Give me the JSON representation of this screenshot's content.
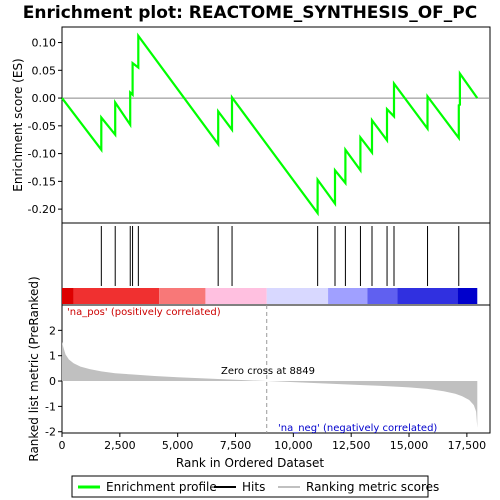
{
  "chart_data": {
    "type": "line",
    "title": "Enrichment plot: REACTOME_SYNTHESIS_OF_PC",
    "top_panel": {
      "ylabel": "Enrichment score (ES)",
      "ylim": [
        -0.225,
        0.128
      ],
      "yticks": [
        0.1,
        0.05,
        0.0,
        -0.05,
        -0.1,
        -0.15,
        -0.2
      ],
      "ytick_labels": [
        "0.10",
        "0.05",
        "0.00",
        "-0.05",
        "-0.10",
        "-0.15",
        "-0.20"
      ],
      "series": [
        {
          "name": "Enrichment profile",
          "color": "#00ff00",
          "x": [
            0,
            1700,
            1700,
            2300,
            2300,
            2950,
            2950,
            3050,
            3050,
            3300,
            3300,
            6750,
            6750,
            7350,
            7350,
            11050,
            11050,
            11800,
            11800,
            12250,
            12250,
            12900,
            12900,
            13400,
            13400,
            14050,
            14050,
            14350,
            14350,
            15800,
            15800,
            17150,
            17150,
            17200,
            17200,
            17950
          ],
          "y": [
            0.0,
            -0.093,
            -0.035,
            -0.066,
            -0.008,
            -0.048,
            0.01,
            0.006,
            0.063,
            0.055,
            0.112,
            -0.083,
            -0.024,
            -0.057,
            0.001,
            -0.207,
            -0.147,
            -0.19,
            -0.13,
            -0.153,
            -0.093,
            -0.13,
            -0.071,
            -0.098,
            -0.04,
            -0.076,
            -0.02,
            -0.033,
            0.026,
            -0.055,
            0.003,
            -0.072,
            -0.013,
            -0.012,
            0.044,
            0.0
          ]
        }
      ]
    },
    "hits_panel": {
      "series": [
        {
          "name": "Hits",
          "color": "#000000",
          "x": [
            1700,
            2300,
            2950,
            3050,
            3300,
            6750,
            7350,
            11050,
            11800,
            12250,
            12900,
            13400,
            14050,
            14350,
            15800,
            17150
          ]
        }
      ]
    },
    "bottom_panel": {
      "ylabel": "Ranked list metric (PreRanked)",
      "xlabel": "Rank in Ordered Dataset",
      "ylim": [
        -2.05,
        3.0
      ],
      "yticks": [
        2,
        1,
        0,
        -1,
        -2
      ],
      "ytick_labels": [
        "2",
        "1",
        "0",
        "-1",
        "-2"
      ],
      "xlim": [
        0,
        18500
      ],
      "xticks": [
        0,
        2500,
        5000,
        7500,
        10000,
        12500,
        15000,
        17500
      ],
      "xtick_labels": [
        "0",
        "2,500",
        "5,000",
        "7,500",
        "10,000",
        "12,500",
        "15,000",
        "17,500"
      ],
      "series": [
        {
          "name": "Ranking metric scores",
          "color": "#c0c0c0",
          "x": [
            0,
            50,
            150,
            300,
            500,
            800,
            1200,
            1700,
            2300,
            3000,
            4000,
            5000,
            6000,
            7000,
            8000,
            8849,
            10000,
            11000,
            12000,
            13000,
            14000,
            15000,
            15800,
            16500,
            17000,
            17300,
            17600,
            17800,
            17900,
            17950
          ],
          "y": [
            1.55,
            1.35,
            1.05,
            0.85,
            0.7,
            0.57,
            0.47,
            0.38,
            0.31,
            0.26,
            0.2,
            0.15,
            0.11,
            0.07,
            0.03,
            0.0,
            -0.04,
            -0.08,
            -0.12,
            -0.16,
            -0.2,
            -0.25,
            -0.31,
            -0.4,
            -0.5,
            -0.6,
            -0.75,
            -0.95,
            -1.2,
            -1.85
          ]
        }
      ],
      "zero_cross_label": "Zero cross at 8849",
      "zero_cross_x": 8849,
      "pos_label": "'na_pos' (positively correlated)",
      "neg_label": "'na_neg' (negatively correlated)",
      "pos_color": "#cc0000",
      "neg_color": "#0000cc"
    },
    "gradient_bar": {
      "colors": [
        "#dd0000",
        "#f03030",
        "#f87878",
        "#ffc0e0",
        "#d8d8ff",
        "#a0a0ff",
        "#6060f0",
        "#3030e0",
        "#0000cc"
      ],
      "x": [
        0,
        500,
        4200,
        6200,
        8849,
        11500,
        13200,
        14500,
        17100,
        17950
      ]
    },
    "legend": {
      "items": [
        {
          "label": "Enrichment profile",
          "color": "#00ff00"
        },
        {
          "label": "Hits",
          "color": "#000000"
        },
        {
          "label": "Ranking metric scores",
          "color": "#c0c0c0"
        }
      ]
    }
  }
}
